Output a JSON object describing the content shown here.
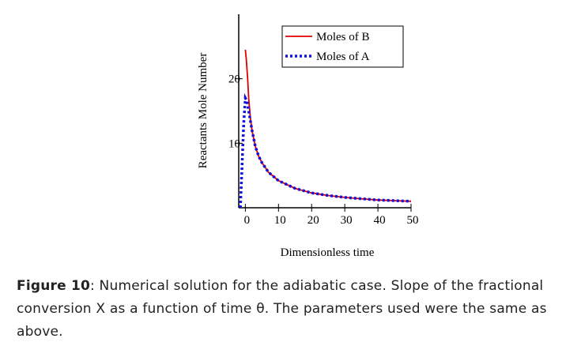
{
  "chart_data": {
    "type": "line",
    "xlabel": "Dimensionless time",
    "ylabel": "Reactants Mole Number",
    "xlim": [
      -2,
      50
    ],
    "ylim": [
      0,
      30
    ],
    "xticks": [
      0,
      10,
      20,
      30,
      40,
      50
    ],
    "yticks": [
      10,
      20
    ],
    "legend": "upper right",
    "series": [
      {
        "name": "Moles of B",
        "color": "#e00000",
        "style": "solid",
        "x": [
          0,
          0.3,
          0.7,
          1,
          1.5,
          2,
          3,
          4,
          5,
          7,
          10,
          15,
          20,
          25,
          30,
          35,
          40,
          45,
          50
        ],
        "values": [
          24.5,
          23,
          20,
          17,
          14,
          12,
          9.5,
          8,
          7,
          5.5,
          4.2,
          3,
          2.3,
          1.9,
          1.6,
          1.4,
          1.2,
          1.1,
          1.0
        ]
      },
      {
        "name": "Moles of A",
        "color": "#1010e0",
        "style": "dotted",
        "x": [
          -1.5,
          -1.2,
          -0.8,
          -0.5,
          0,
          0.5,
          1,
          1.5,
          2,
          3,
          4,
          5,
          7,
          10,
          15,
          20,
          25,
          30,
          35,
          40,
          45,
          50
        ],
        "values": [
          0,
          4,
          9,
          13,
          17,
          16.5,
          15,
          13.5,
          12,
          9.5,
          8,
          7,
          5.5,
          4.2,
          3,
          2.3,
          1.9,
          1.6,
          1.4,
          1.2,
          1.1,
          1.0
        ]
      }
    ]
  },
  "caption": {
    "label": "Figure 10",
    "text": ": Numerical solution for the adiabatic case. Slope of the fractional conversion X as a function of time θ. The parameters used were the same as above."
  }
}
